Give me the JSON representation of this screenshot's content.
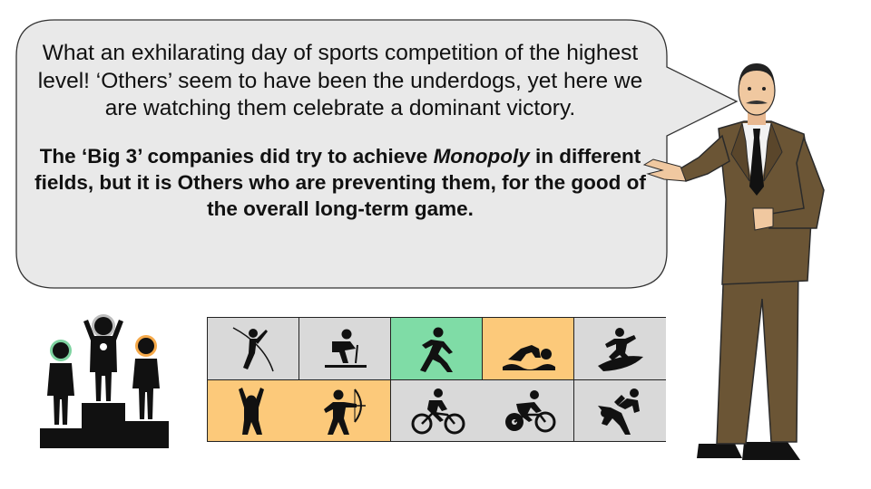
{
  "speech": {
    "paragraph1": "What an exhilarating day of sports competition of the highest level! ‘Others’ seem to have been the underdogs, yet here we are watching them celebrate a dominant victory.",
    "paragraph2_a": "The ‘Big 3’ companies did try to achieve ",
    "paragraph2_italic": "Monopoly",
    "paragraph2_b": " in different fields, but it is Others who are preventing them, for the good of the overall long-term game."
  },
  "colors": {
    "bubble_fill": "#e9e9e9",
    "cell_gray": "#d9d9d9",
    "cell_green": "#7fdca6",
    "cell_orange": "#fcc97a",
    "winner_green": "#7ed3a0",
    "winner_orange": "#f5a94a",
    "winner_gray": "#bdbdbd",
    "suit": "#6b5535"
  },
  "sports_grid": {
    "row1": [
      {
        "icon": "pole-vault-icon",
        "fill": "gray"
      },
      {
        "icon": "skiing-icon",
        "fill": "gray"
      },
      {
        "icon": "running-icon",
        "fill": "green"
      },
      {
        "icon": "swimming-icon",
        "fill": "orange"
      },
      {
        "icon": "surfing-icon",
        "fill": "gray"
      }
    ],
    "row2": [
      {
        "icon": "gymnastics-icon",
        "fill": "orange"
      },
      {
        "icon": "archery-icon",
        "fill": "orange"
      },
      {
        "icon": "mountain-biking-icon",
        "fill": "gray"
      },
      {
        "icon": "track-cycling-icon",
        "fill": "gray"
      },
      {
        "icon": "wrestling-icon",
        "fill": "gray"
      }
    ]
  }
}
